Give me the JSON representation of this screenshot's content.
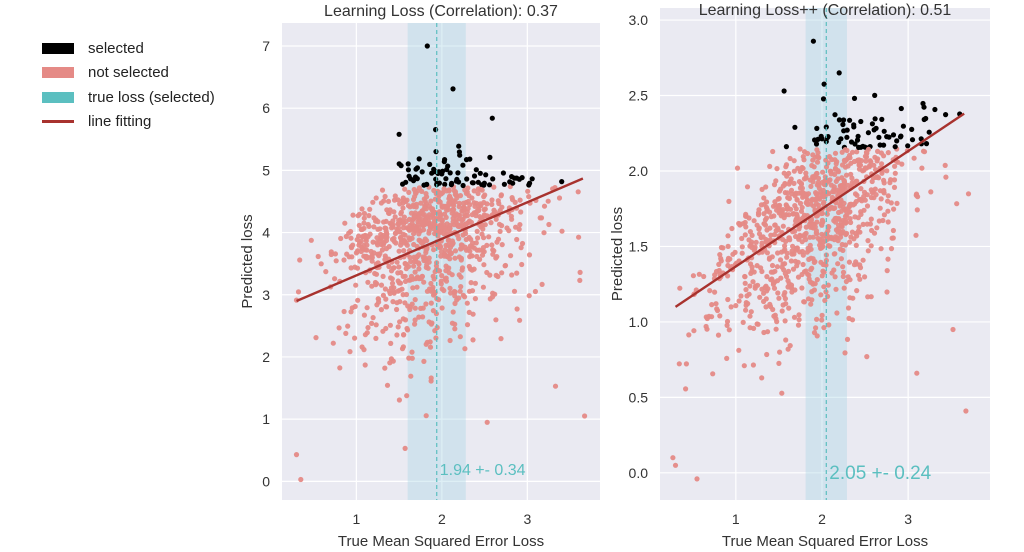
{
  "legend": [
    {
      "label": "selected",
      "color": "#000000",
      "kind": "patch"
    },
    {
      "label": "not selected",
      "color": "#E58A86",
      "kind": "patch"
    },
    {
      "label": "true loss (selected)",
      "color": "#5BBFC0",
      "kind": "patch"
    },
    {
      "label": "line fitting",
      "color": "#A8322E",
      "kind": "line"
    }
  ],
  "chart_data": [
    {
      "type": "scatter",
      "title": "Learning Loss (Correlation): 0.37",
      "xlabel": "True Mean Squared Error Loss",
      "ylabel": "Predicted loss",
      "xlim": [
        0.13,
        3.85
      ],
      "ylim": [
        -0.3,
        7.37
      ],
      "xticks": [
        1,
        2,
        3
      ],
      "yticks": [
        0,
        1,
        2,
        3,
        4,
        5,
        6,
        7
      ],
      "grid": true,
      "correlation": 0.37,
      "selected_threshold": 4.75,
      "true_loss_mean": 1.94,
      "true_loss_std": 0.34,
      "annotation": "1.94 +- 0.34",
      "fit_line": [
        [
          0.3,
          2.9
        ],
        [
          3.65,
          4.87
        ]
      ],
      "point_distribution": {
        "n": 1000,
        "x_mean": 1.9,
        "x_sd": 0.55,
        "y_center": 4.0,
        "y_sd_up": 0.45,
        "y_sd_down": 0.9,
        "slope": 0.35,
        "seed": 7
      },
      "outliers": [
        [
          1.83,
          7.0
        ],
        [
          2.13,
          6.31
        ],
        [
          2.59,
          5.84
        ],
        [
          1.5,
          5.58
        ],
        [
          0.3,
          0.43
        ],
        [
          0.35,
          0.03
        ],
        [
          3.67,
          1.05
        ],
        [
          2.53,
          0.95
        ],
        [
          3.33,
          1.53
        ],
        [
          1.57,
          0.53
        ]
      ]
    },
    {
      "type": "scatter",
      "title": "Learning Loss++ (Correlation): 0.51",
      "xlabel": "True Mean Squared Error Loss",
      "ylabel": "Predicted loss",
      "xlim": [
        0.12,
        3.95
      ],
      "ylim": [
        -0.18,
        3.08
      ],
      "xticks": [
        1,
        2,
        3
      ],
      "yticks": [
        0.0,
        0.5,
        1.0,
        1.5,
        2.0,
        2.5,
        3.0
      ],
      "grid": true,
      "correlation": 0.51,
      "selected_threshold": 2.15,
      "true_loss_mean": 2.05,
      "true_loss_std": 0.24,
      "annotation": "2.05 +- 0.24",
      "fit_line": [
        [
          0.3,
          1.1
        ],
        [
          3.65,
          2.38
        ]
      ],
      "point_distribution": {
        "n": 1000,
        "x_mean": 1.9,
        "x_sd": 0.55,
        "y_center": 1.72,
        "y_sd_up": 0.22,
        "y_sd_down": 0.35,
        "slope": 0.38,
        "seed": 11
      },
      "outliers": [
        [
          1.9,
          2.86
        ],
        [
          1.56,
          2.53
        ],
        [
          2.2,
          2.65
        ],
        [
          0.3,
          0.05
        ],
        [
          0.27,
          0.1
        ],
        [
          0.55,
          -0.04
        ],
        [
          3.67,
          0.41
        ],
        [
          3.52,
          0.95
        ],
        [
          3.1,
          0.66
        ],
        [
          2.52,
          0.77
        ]
      ]
    }
  ]
}
